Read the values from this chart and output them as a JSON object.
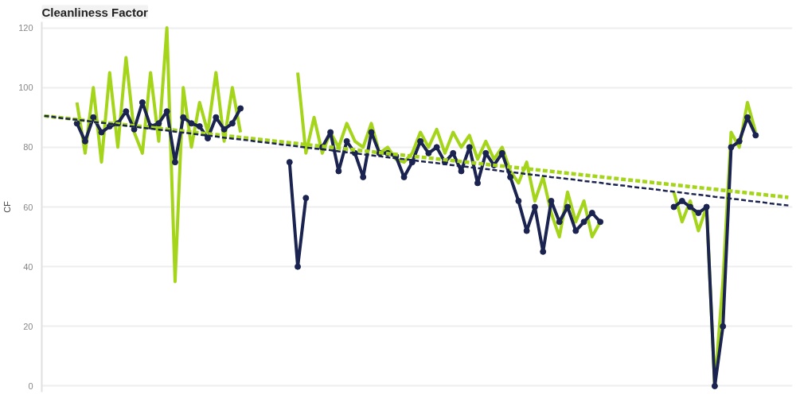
{
  "chart_data": {
    "type": "line",
    "title": "Cleanliness Factor",
    "ylabel": "CF",
    "categories": [
      null,
      null,
      null,
      null,
      null,
      null,
      null,
      null,
      null,
      null,
      null,
      null,
      null,
      null,
      null,
      null,
      null,
      null,
      null,
      null,
      null,
      null,
      null,
      null,
      null,
      null,
      null,
      null,
      null,
      null,
      null,
      null,
      null,
      null,
      null,
      null,
      null,
      null,
      null,
      null,
      null,
      null,
      null,
      null,
      null,
      null,
      null,
      null,
      null,
      null,
      null,
      null,
      null,
      null,
      null,
      null,
      null,
      null,
      null,
      null,
      null,
      null,
      null,
      null,
      null,
      null,
      null,
      null,
      null,
      null,
      null,
      null,
      null,
      null,
      null,
      null,
      null,
      null,
      null,
      null,
      null,
      null,
      null,
      null,
      null,
      null,
      null,
      null,
      null,
      null,
      null,
      null
    ],
    "series": [
      {
        "color": "#a4d51b",
        "marker": "none",
        "line_style": "solid",
        "values": [
          null,
          null,
          null,
          null,
          95,
          78,
          100,
          75,
          105,
          80,
          110,
          85,
          78,
          105,
          82,
          120,
          35,
          100,
          80,
          95,
          85,
          105,
          82,
          100,
          85,
          null,
          null,
          null,
          null,
          null,
          null,
          105,
          78,
          90,
          78,
          85,
          80,
          88,
          82,
          80,
          88,
          78,
          80,
          76,
          75,
          78,
          85,
          80,
          86,
          78,
          85,
          80,
          84,
          76,
          82,
          76,
          80,
          72,
          68,
          75,
          62,
          70,
          58,
          50,
          65,
          55,
          62,
          50,
          55,
          null,
          null,
          null,
          null,
          null,
          null,
          null,
          null,
          65,
          55,
          62,
          52,
          60,
          0,
          35,
          85,
          80,
          95,
          85,
          null,
          null,
          null,
          null
        ]
      },
      {
        "color": "#1b2450",
        "marker": "circle",
        "line_style": "solid",
        "values": [
          null,
          null,
          null,
          null,
          88,
          82,
          90,
          85,
          87,
          88,
          92,
          86,
          95,
          87,
          88,
          92,
          75,
          90,
          88,
          87,
          83,
          90,
          86,
          88,
          93,
          null,
          null,
          null,
          null,
          null,
          75,
          40,
          63,
          null,
          80,
          85,
          72,
          82,
          78,
          70,
          85,
          78,
          78,
          77,
          70,
          75,
          82,
          78,
          80,
          75,
          78,
          72,
          80,
          68,
          78,
          74,
          78,
          70,
          62,
          52,
          60,
          45,
          62,
          55,
          60,
          52,
          55,
          58,
          55,
          null,
          null,
          null,
          null,
          null,
          null,
          null,
          null,
          60,
          62,
          60,
          58,
          60,
          0,
          20,
          80,
          82,
          90,
          84,
          null,
          null,
          null,
          null
        ]
      },
      {
        "type": "line",
        "color": "#a4d51b",
        "marker": "none",
        "line_style": "dashed",
        "values": [
          90.5,
          90.2,
          89.9,
          89.6,
          89.3,
          89.0,
          88.7,
          88.4,
          88.1,
          87.8,
          87.5,
          87.2,
          86.9,
          86.6,
          86.3,
          86.0,
          85.7,
          85.4,
          85.1,
          84.8,
          84.5,
          84.2,
          83.9,
          83.6,
          83.3,
          83.0,
          82.7,
          82.4,
          82.1,
          81.8,
          81.5,
          81.2,
          80.9,
          80.6,
          80.3,
          80.0,
          79.7,
          79.4,
          79.1,
          78.8,
          78.5,
          78.2,
          77.9,
          77.6,
          77.3,
          77.0,
          76.7,
          76.4,
          76.1,
          75.8,
          75.5,
          75.2,
          74.9,
          74.6,
          74.3,
          74.0,
          73.7,
          73.4,
          73.1,
          72.8,
          72.5,
          72.2,
          71.9,
          71.6,
          71.3,
          71.0,
          70.7,
          70.4,
          70.1,
          69.8,
          69.5,
          69.2,
          68.9,
          68.6,
          68.3,
          68.0,
          67.7,
          67.4,
          67.1,
          66.8,
          66.5,
          66.2,
          65.9,
          65.6,
          65.3,
          65.0,
          64.7,
          64.4,
          64.1,
          63.8,
          63.5,
          63.2
        ]
      },
      {
        "type": "line",
        "color": "#1b2450",
        "marker": "none",
        "line_style": "dashed",
        "values": [
          90.5,
          90.2,
          89.8,
          89.5,
          89.2,
          88.9,
          88.5,
          88.2,
          87.9,
          87.5,
          87.2,
          86.9,
          86.5,
          86.2,
          85.9,
          85.6,
          85.2,
          84.9,
          84.6,
          84.2,
          83.9,
          83.6,
          83.2,
          82.9,
          82.6,
          82.3,
          81.9,
          81.6,
          81.3,
          80.9,
          80.6,
          80.3,
          79.9,
          79.6,
          79.3,
          79.0,
          78.6,
          78.3,
          78.0,
          77.6,
          77.3,
          77.0,
          76.6,
          76.3,
          76.0,
          75.7,
          75.3,
          75.0,
          74.7,
          74.3,
          74.0,
          73.7,
          73.3,
          73.0,
          72.7,
          72.4,
          72.0,
          71.7,
          71.4,
          71.0,
          70.7,
          70.4,
          70.0,
          69.7,
          69.4,
          69.1,
          68.7,
          68.4,
          68.1,
          67.7,
          67.4,
          67.1,
          66.7,
          66.4,
          66.1,
          65.8,
          65.4,
          65.1,
          64.8,
          64.4,
          64.1,
          63.8,
          63.4,
          63.1,
          62.8,
          62.5,
          62.1,
          61.8,
          61.5,
          61.1,
          60.8,
          60.5
        ]
      }
    ],
    "ylim": [
      -2,
      122
    ],
    "yticks": [
      0,
      20,
      40,
      60,
      80,
      100,
      120
    ],
    "grid": "y"
  }
}
